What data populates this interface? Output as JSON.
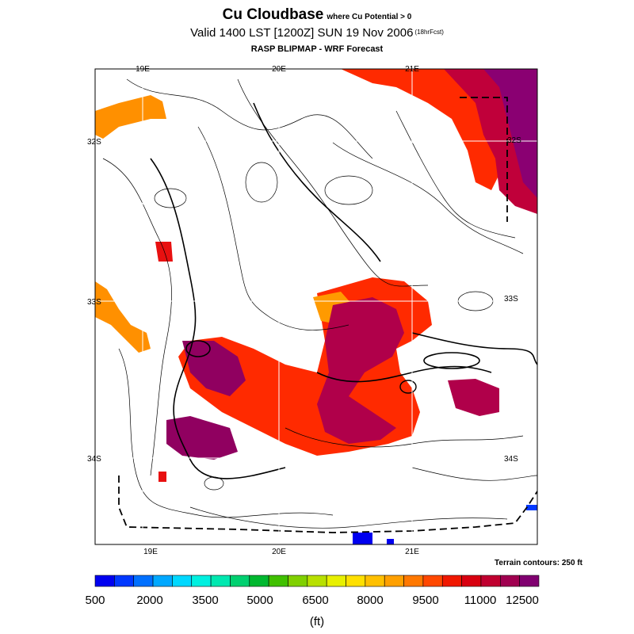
{
  "header": {
    "title": "Cu Cloudbase",
    "title_note": "where Cu Potential > 0",
    "valid": "Valid 1400 LST [1200Z] SUN 19 Nov 2006",
    "forecast_note": "(18hrFcst)",
    "subtitle": "RASP BLIPMAP - WRF Forecast"
  },
  "map": {
    "lon_labels_top": [
      "19E",
      "20E",
      "21E"
    ],
    "lon_labels_bottom": [
      "19E",
      "20E",
      "21E"
    ],
    "lat_labels_left": [
      "32S",
      "33S",
      "34S"
    ],
    "lat_labels_right": [
      "32S",
      "33S",
      "34S"
    ],
    "terrain_note": "Terrain contours: 250 ft"
  },
  "colorbar": {
    "labels": [
      "500",
      "2000",
      "3500",
      "5000",
      "6500",
      "8000",
      "9500",
      "11000",
      "12500"
    ],
    "unit": "(ft)",
    "colors": [
      "#0000f0",
      "#0038ff",
      "#0070ff",
      "#00a8ff",
      "#00d8ff",
      "#00f0e0",
      "#00e8b0",
      "#00d070",
      "#00b830",
      "#40c000",
      "#80d000",
      "#b8e000",
      "#e8f000",
      "#ffe000",
      "#ffc000",
      "#ffa000",
      "#ff7800",
      "#ff4800",
      "#f01800",
      "#d80010",
      "#c00030",
      "#a00050",
      "#800070"
    ]
  }
}
